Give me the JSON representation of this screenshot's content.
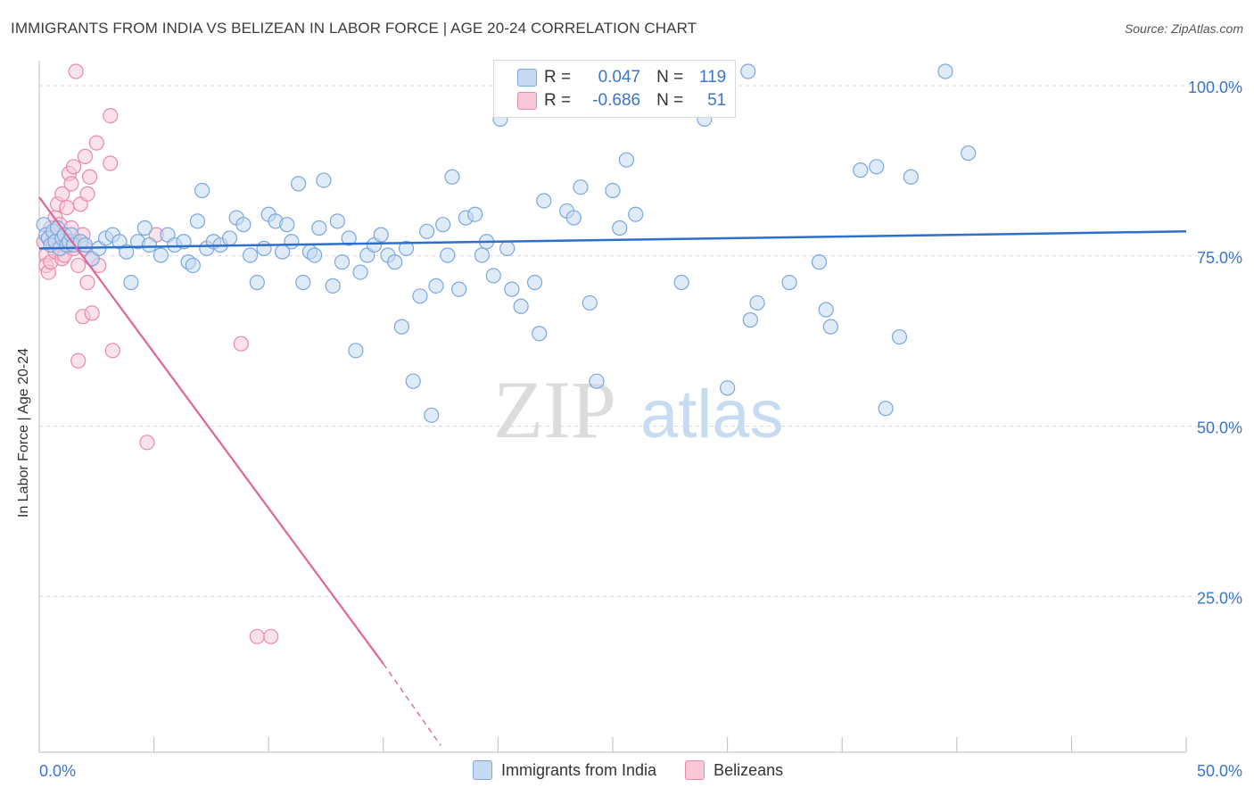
{
  "title": "IMMIGRANTS FROM INDIA VS BELIZEAN IN LABOR FORCE | AGE 20-24 CORRELATION CHART",
  "source": "Source: ZipAtlas.com",
  "watermark": {
    "zip": "ZIP",
    "atlas": "atlas"
  },
  "legend": {
    "r_label": "R =",
    "n_label": "N =",
    "india": {
      "r": "0.047",
      "n": "119",
      "color": "#7aa7e0",
      "fill": "#c6daf3"
    },
    "belize": {
      "r": "-0.686",
      "n": "51",
      "color": "#e88aa8",
      "fill": "#f8c8d7"
    }
  },
  "colors": {
    "blue_line": "#2f6fcc",
    "pink_line": "#e0649a",
    "axis_label": "#3a76c8",
    "grid": "#d9d9d9"
  },
  "chart_data": {
    "type": "scatter",
    "title": "IMMIGRANTS FROM INDIA VS BELIZEAN IN LABOR FORCE | AGE 20-24 CORRELATION CHART",
    "xlabel": "",
    "ylabel": "In Labor Force | Age 20-24",
    "xlim": [
      0,
      50
    ],
    "ylim": [
      0,
      100
    ],
    "x_tick_labels": [
      "0.0%",
      "50.0%"
    ],
    "y_tick_labels": [
      {
        "value": 100,
        "label": "100.0%"
      },
      {
        "value": 75,
        "label": "75.0%"
      },
      {
        "value": 50,
        "label": "50.0%"
      },
      {
        "value": 25,
        "label": "25.0%"
      }
    ],
    "series": [
      {
        "name": "Immigrants from India",
        "r": 0.047,
        "n": 119,
        "trend": {
          "x": [
            0,
            50
          ],
          "y": [
            74.0,
            76.5
          ]
        },
        "points": [
          [
            0.2,
            77.5
          ],
          [
            0.3,
            76.0
          ],
          [
            0.4,
            75.5
          ],
          [
            0.5,
            74.5
          ],
          [
            0.6,
            76.5
          ],
          [
            0.7,
            75.0
          ],
          [
            0.8,
            77.0
          ],
          [
            0.9,
            74.0
          ],
          [
            1.0,
            75.5
          ],
          [
            1.1,
            76.0
          ],
          [
            1.2,
            74.5
          ],
          [
            1.3,
            75.0
          ],
          [
            1.4,
            76.0
          ],
          [
            1.5,
            74.5
          ],
          [
            1.8,
            75.0
          ],
          [
            2.0,
            74.5
          ],
          [
            2.3,
            72.5
          ],
          [
            2.6,
            74.0
          ],
          [
            2.9,
            75.5
          ],
          [
            3.2,
            76.0
          ],
          [
            3.5,
            75.0
          ],
          [
            3.8,
            73.5
          ],
          [
            4.0,
            69.0
          ],
          [
            4.3,
            75.0
          ],
          [
            4.6,
            77.0
          ],
          [
            4.8,
            74.5
          ],
          [
            5.3,
            73.0
          ],
          [
            5.6,
            76.0
          ],
          [
            5.9,
            74.5
          ],
          [
            6.3,
            75.0
          ],
          [
            6.5,
            72.0
          ],
          [
            6.7,
            71.5
          ],
          [
            6.9,
            78.0
          ],
          [
            7.1,
            82.5
          ],
          [
            7.3,
            74.0
          ],
          [
            7.6,
            75.0
          ],
          [
            7.9,
            74.5
          ],
          [
            8.3,
            75.5
          ],
          [
            8.6,
            78.5
          ],
          [
            8.9,
            77.5
          ],
          [
            9.2,
            73.0
          ],
          [
            9.5,
            69.0
          ],
          [
            9.8,
            74.0
          ],
          [
            10.0,
            79.0
          ],
          [
            10.3,
            78.0
          ],
          [
            10.6,
            73.5
          ],
          [
            10.8,
            77.5
          ],
          [
            11.0,
            75.0
          ],
          [
            11.3,
            83.5
          ],
          [
            11.5,
            69.0
          ],
          [
            11.8,
            73.5
          ],
          [
            12.0,
            73.0
          ],
          [
            12.2,
            77.0
          ],
          [
            12.4,
            84.0
          ],
          [
            12.8,
            68.5
          ],
          [
            13.0,
            78.0
          ],
          [
            13.2,
            72.0
          ],
          [
            13.5,
            75.5
          ],
          [
            13.8,
            59.0
          ],
          [
            14.0,
            70.5
          ],
          [
            14.3,
            73.0
          ],
          [
            14.6,
            74.5
          ],
          [
            14.9,
            76.0
          ],
          [
            15.2,
            73.0
          ],
          [
            15.5,
            72.0
          ],
          [
            15.8,
            62.5
          ],
          [
            16.0,
            74.0
          ],
          [
            16.3,
            54.5
          ],
          [
            16.6,
            67.0
          ],
          [
            16.9,
            76.5
          ],
          [
            17.1,
            49.5
          ],
          [
            17.3,
            68.5
          ],
          [
            17.6,
            77.5
          ],
          [
            17.8,
            73.0
          ],
          [
            18.0,
            84.5
          ],
          [
            18.3,
            68.0
          ],
          [
            18.6,
            78.5
          ],
          [
            19.0,
            79.0
          ],
          [
            19.3,
            73.0
          ],
          [
            19.5,
            75.0
          ],
          [
            19.8,
            70.0
          ],
          [
            20.1,
            93.0
          ],
          [
            20.4,
            74.0
          ],
          [
            20.6,
            68.0
          ],
          [
            21.0,
            65.5
          ],
          [
            21.3,
            100
          ],
          [
            21.6,
            69.0
          ],
          [
            21.8,
            61.5
          ],
          [
            22.0,
            81.0
          ],
          [
            23.0,
            79.5
          ],
          [
            23.3,
            78.5
          ],
          [
            23.6,
            83.0
          ],
          [
            24.0,
            66.0
          ],
          [
            24.3,
            54.5
          ],
          [
            25.0,
            82.5
          ],
          [
            25.3,
            77.0
          ],
          [
            25.6,
            87.0
          ],
          [
            26.0,
            79.0
          ],
          [
            26.9,
            100
          ],
          [
            28.0,
            69.0
          ],
          [
            29.0,
            93.0
          ],
          [
            30.0,
            53.5
          ],
          [
            30.9,
            100
          ],
          [
            31.0,
            63.5
          ],
          [
            31.3,
            66.0
          ],
          [
            32.7,
            69.0
          ],
          [
            34.0,
            72.0
          ],
          [
            34.3,
            65.0
          ],
          [
            34.5,
            62.5
          ],
          [
            35.8,
            85.5
          ],
          [
            36.5,
            86.0
          ],
          [
            36.9,
            50.5
          ],
          [
            37.5,
            61.0
          ],
          [
            38.0,
            84.5
          ],
          [
            39.5,
            100
          ],
          [
            40.5,
            88.0
          ]
        ]
      },
      {
        "name": "Belizeans",
        "r": -0.686,
        "n": 51,
        "trend": {
          "x": [
            0,
            15
          ],
          "y": [
            81.5,
            13.0
          ]
        },
        "trend_dashed": {
          "x": [
            15,
            17.5
          ],
          "y": [
            13.0,
            1.0
          ]
        },
        "points": [
          [
            0.2,
            75.0
          ],
          [
            0.3,
            73.0
          ],
          [
            0.3,
            71.5
          ],
          [
            0.4,
            70.5
          ],
          [
            0.4,
            75.5
          ],
          [
            0.5,
            77.0
          ],
          [
            0.5,
            72.0
          ],
          [
            0.6,
            74.5
          ],
          [
            0.6,
            76.0
          ],
          [
            0.7,
            78.5
          ],
          [
            0.7,
            73.5
          ],
          [
            0.8,
            80.5
          ],
          [
            0.8,
            75.5
          ],
          [
            0.9,
            74.0
          ],
          [
            0.9,
            77.5
          ],
          [
            1.0,
            82.0
          ],
          [
            1.0,
            72.5
          ],
          [
            1.1,
            76.0
          ],
          [
            1.1,
            73.0
          ],
          [
            1.2,
            75.0
          ],
          [
            1.2,
            80.0
          ],
          [
            1.3,
            74.5
          ],
          [
            1.3,
            85.0
          ],
          [
            1.4,
            83.5
          ],
          [
            1.4,
            77.0
          ],
          [
            1.5,
            74.0
          ],
          [
            1.5,
            86.0
          ],
          [
            1.6,
            100
          ],
          [
            1.6,
            75.0
          ],
          [
            1.7,
            71.5
          ],
          [
            1.7,
            57.5
          ],
          [
            1.8,
            74.5
          ],
          [
            1.8,
            80.5
          ],
          [
            1.9,
            76.0
          ],
          [
            1.9,
            64.0
          ],
          [
            2.0,
            87.5
          ],
          [
            2.0,
            74.0
          ],
          [
            2.1,
            69.0
          ],
          [
            2.1,
            82.0
          ],
          [
            2.2,
            84.5
          ],
          [
            2.3,
            72.5
          ],
          [
            2.3,
            64.5
          ],
          [
            2.5,
            89.5
          ],
          [
            2.6,
            71.5
          ],
          [
            3.1,
            86.5
          ],
          [
            3.1,
            93.5
          ],
          [
            3.2,
            59.0
          ],
          [
            4.7,
            45.5
          ],
          [
            5.1,
            76.0
          ],
          [
            8.8,
            60.0
          ],
          [
            9.5,
            17.0
          ],
          [
            10.1,
            17.0
          ]
        ]
      }
    ]
  }
}
